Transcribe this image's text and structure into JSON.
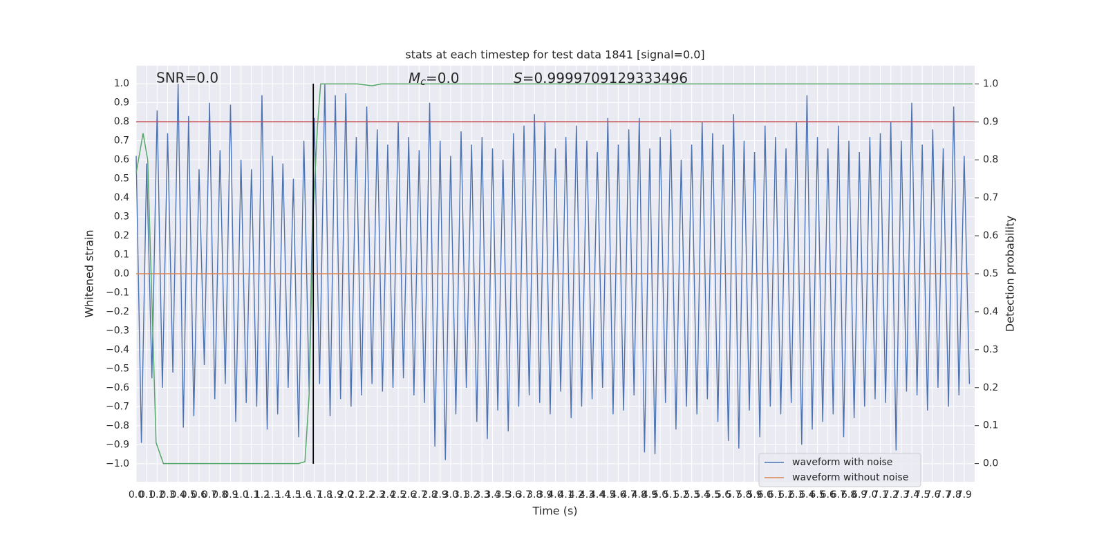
{
  "chart_data": {
    "type": "line",
    "title": "stats at each timestep for test data 1841 [signal=0.0]",
    "xlabel": "Time (s)",
    "ylabel": "Whitened strain",
    "y2label": "Detection probability",
    "annotations": {
      "snr": "SNR=0.0",
      "mc": {
        "symbol": "M",
        "subscript": "c",
        "text": "=0.0"
      },
      "s": {
        "symbol": "S",
        "text": "=0.9999709129333496"
      }
    },
    "xlim": [
      0,
      8.0
    ],
    "ylim": [
      -1.095,
      1.095
    ],
    "y2lim": [
      -0.048,
      1.048
    ],
    "grid": true,
    "legend": "lower right",
    "xticks": [
      {
        "value": 0,
        "label": "0.0"
      },
      0.1,
      0.2,
      0.3,
      0.4,
      0.5,
      0.6,
      0.7,
      0.8,
      0.9,
      {
        "value": 1,
        "label": "1.0"
      },
      1.1,
      1.2,
      1.3,
      1.4,
      1.5,
      1.6,
      1.7,
      1.8,
      1.9,
      {
        "value": 2,
        "label": "2.0"
      },
      2.1,
      2.2,
      2.3,
      2.4,
      2.5,
      2.6,
      2.7,
      2.8,
      2.9,
      {
        "value": 3,
        "label": "3.0"
      },
      3.1,
      3.2,
      3.3,
      3.4,
      3.5,
      3.6,
      3.7,
      3.8,
      3.9,
      {
        "value": 4,
        "label": "4.0"
      },
      4.1,
      4.2,
      4.3,
      4.4,
      4.5,
      4.6,
      4.7,
      4.8,
      4.9,
      {
        "value": 5,
        "label": "5.0"
      },
      5.1,
      5.2,
      5.3,
      5.4,
      5.5,
      5.6,
      5.7,
      5.8,
      5.9,
      {
        "value": 6,
        "label": "6.0"
      },
      6.1,
      6.2,
      6.3,
      6.4,
      6.5,
      6.6,
      6.7,
      6.8,
      6.9,
      {
        "value": 7,
        "label": "7.0"
      },
      7.1,
      7.2,
      7.3,
      7.4,
      7.5,
      7.6,
      7.7,
      7.8,
      7.9
    ],
    "yticks": [
      {
        "value": -1,
        "label": "−1.0"
      },
      {
        "value": -0.9,
        "label": "−0.9"
      },
      {
        "value": -0.8,
        "label": "−0.8"
      },
      {
        "value": -0.7,
        "label": "−0.7"
      },
      {
        "value": -0.6,
        "label": "−0.6"
      },
      {
        "value": -0.5,
        "label": "−0.5"
      },
      {
        "value": -0.4,
        "label": "−0.4"
      },
      {
        "value": -0.3,
        "label": "−0.3"
      },
      {
        "value": -0.2,
        "label": "−0.2"
      },
      {
        "value": -0.1,
        "label": "−0.1"
      },
      {
        "value": 0,
        "label": "0.0"
      },
      0.1,
      0.2,
      0.3,
      0.4,
      0.5,
      0.6,
      0.7,
      0.8,
      0.9,
      {
        "value": 1,
        "label": "1.0"
      }
    ],
    "y2ticks": [
      {
        "value": 0,
        "label": "0.0"
      },
      0.1,
      0.2,
      0.3,
      0.4,
      0.5,
      0.6,
      0.7,
      0.8,
      0.9,
      {
        "value": 1,
        "label": "1.0"
      }
    ],
    "series": [
      {
        "name": "waveform with noise",
        "color": "#4c72b0",
        "x": [
          0,
          0.05,
          0.1,
          0.15,
          0.2,
          0.25,
          0.3,
          0.35,
          0.4,
          0.45,
          0.5,
          0.55,
          0.6,
          0.65,
          0.7,
          0.75,
          0.8,
          0.85,
          0.9,
          0.95,
          1,
          1.05,
          1.1,
          1.15,
          1.2,
          1.25,
          1.3,
          1.35,
          1.4,
          1.45,
          1.5,
          1.55,
          1.6,
          1.65,
          1.7,
          1.75,
          1.8,
          1.85,
          1.9,
          1.95,
          2,
          2.05,
          2.1,
          2.15,
          2.2,
          2.25,
          2.3,
          2.35,
          2.4,
          2.45,
          2.5,
          2.55,
          2.6,
          2.65,
          2.7,
          2.75,
          2.8,
          2.85,
          2.9,
          2.95,
          3,
          3.05,
          3.1,
          3.15,
          3.2,
          3.25,
          3.3,
          3.35,
          3.4,
          3.45,
          3.5,
          3.55,
          3.6,
          3.65,
          3.7,
          3.75,
          3.8,
          3.85,
          3.9,
          3.95,
          4,
          4.05,
          4.1,
          4.15,
          4.2,
          4.25,
          4.3,
          4.35,
          4.4,
          4.45,
          4.5,
          4.55,
          4.6,
          4.65,
          4.7,
          4.75,
          4.8,
          4.85,
          4.9,
          4.95,
          5,
          5.05,
          5.1,
          5.15,
          5.2,
          5.25,
          5.3,
          5.35,
          5.4,
          5.45,
          5.5,
          5.55,
          5.6,
          5.65,
          5.7,
          5.75,
          5.8,
          5.85,
          5.9,
          5.95,
          6,
          6.05,
          6.1,
          6.15,
          6.2,
          6.25,
          6.3,
          6.35,
          6.4,
          6.45,
          6.5,
          6.55,
          6.6,
          6.65,
          6.7,
          6.75,
          6.8,
          6.85,
          6.9,
          6.95,
          7,
          7.05,
          7.1,
          7.15,
          7.2,
          7.25,
          7.3,
          7.35,
          7.4,
          7.45,
          7.5,
          7.55,
          7.6,
          7.65,
          7.7,
          7.75,
          7.8,
          7.85,
          7.9,
          7.95
        ],
        "values": [
          0.62,
          -0.89,
          0.58,
          -0.55,
          0.86,
          -0.6,
          0.74,
          -0.52,
          1.0,
          -0.81,
          0.83,
          -0.75,
          0.55,
          -0.48,
          0.9,
          -0.66,
          0.65,
          -0.58,
          0.89,
          -0.78,
          0.6,
          -0.68,
          0.55,
          -0.7,
          0.94,
          -0.82,
          0.62,
          -0.74,
          0.58,
          -0.6,
          0.5,
          -0.86,
          0.7,
          -0.62,
          0.82,
          -0.58,
          1.0,
          -0.75,
          0.94,
          -0.66,
          0.95,
          -0.7,
          0.72,
          -0.64,
          0.88,
          -0.58,
          0.76,
          -0.62,
          0.68,
          -0.6,
          0.8,
          -0.55,
          0.72,
          -0.64,
          0.65,
          -0.68,
          0.9,
          -0.91,
          0.7,
          -0.98,
          0.62,
          -0.74,
          0.75,
          -0.6,
          0.68,
          -0.78,
          0.72,
          -0.87,
          0.66,
          -0.72,
          0.6,
          -0.83,
          0.74,
          -0.7,
          0.78,
          -0.64,
          0.84,
          -0.68,
          0.8,
          -0.74,
          0.66,
          -0.62,
          0.72,
          -0.76,
          0.78,
          -0.7,
          0.7,
          -0.66,
          0.64,
          -0.6,
          0.82,
          -0.74,
          0.68,
          -0.72,
          0.76,
          -0.64,
          0.82,
          -0.94,
          0.66,
          -0.95,
          0.72,
          -0.68,
          0.76,
          -0.82,
          0.6,
          -0.7,
          0.68,
          -0.74,
          0.8,
          -0.66,
          0.74,
          -0.78,
          0.68,
          -0.88,
          0.84,
          -0.92,
          0.7,
          -0.72,
          0.64,
          -0.86,
          0.78,
          -0.7,
          0.72,
          -0.74,
          0.66,
          -0.68,
          0.8,
          -0.9,
          0.94,
          -0.82,
          0.72,
          -0.78,
          0.66,
          -0.74,
          0.78,
          -0.86,
          0.7,
          -0.76,
          0.64,
          -0.7,
          0.72,
          -0.66,
          0.74,
          -0.68,
          0.8,
          -0.93,
          0.7,
          -0.62,
          0.9,
          -0.64,
          0.68,
          -0.72,
          0.76,
          -0.6,
          0.66,
          -0.7,
          0.88,
          -0.64,
          0.62,
          -0.58
        ]
      },
      {
        "name": "waveform without noise",
        "color": "#dd8452",
        "x": [
          0,
          7.95
        ],
        "values": [
          0,
          0
        ]
      }
    ],
    "probability": {
      "color": "#55a868",
      "axis": "y2",
      "x": [
        0,
        0.066,
        0.11,
        0.19,
        0.26,
        1.55,
        1.61,
        1.65,
        1.69,
        1.73,
        1.76,
        2.11,
        2.25,
        2.34,
        7.98
      ],
      "values": [
        0.765,
        0.87,
        0.8,
        0.055,
        0,
        0,
        0.005,
        0.18,
        0.67,
        0.89,
        1.0,
        1.0,
        0.995,
        1.0,
        1.0
      ]
    },
    "threshold": {
      "value": 0.8,
      "color": "#c44e52"
    },
    "vline": {
      "x": 1.69,
      "ymin": -1,
      "ymax": 1,
      "color": "#000000"
    }
  }
}
